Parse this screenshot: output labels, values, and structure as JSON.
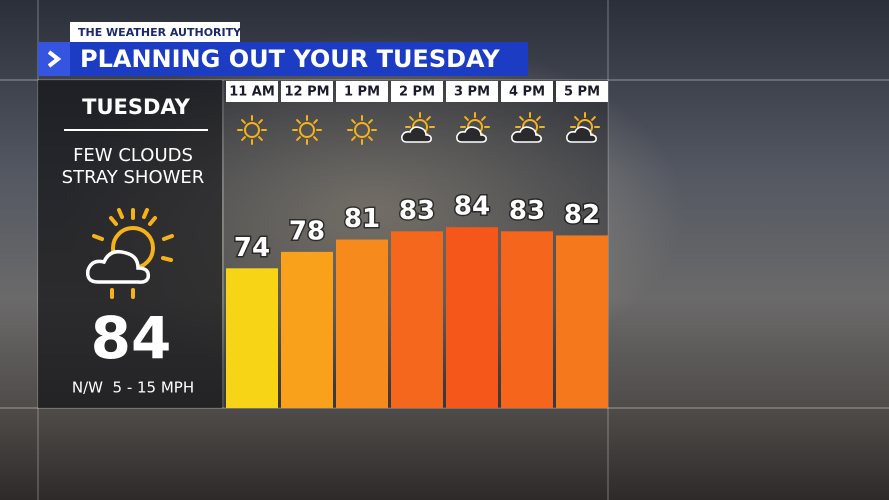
{
  "header": {
    "tag": "THE WEATHER AUTHORITY",
    "title": "PLANNING OUT YOUR TUESDAY"
  },
  "summary": {
    "day": "TUESDAY",
    "condition_1": "FEW CLOUDS",
    "condition_2": "STRAY SHOWER",
    "high": "84",
    "wind": "N/W  5 - 15 MPH"
  },
  "chart_data": {
    "type": "bar",
    "categories": [
      "11 AM",
      "12 PM",
      "1 PM",
      "2 PM",
      "3 PM",
      "4 PM",
      "5 PM"
    ],
    "values": [
      74,
      78,
      81,
      83,
      84,
      83,
      82
    ],
    "colors": [
      "#f8d417",
      "#f9a11b",
      "#f78a1c",
      "#f5671c",
      "#f5561a",
      "#f5661c",
      "#f5791c"
    ],
    "icons": [
      "sun",
      "sun",
      "sun",
      "partly-cloudy",
      "partly-cloudy",
      "partly-cloudy",
      "partly-cloudy"
    ],
    "ylim": [
      40,
      86
    ]
  }
}
